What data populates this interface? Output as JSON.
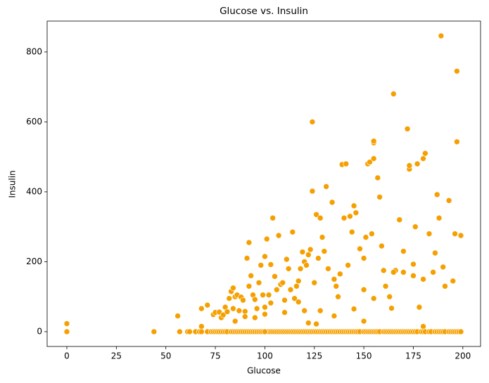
{
  "chart_data": {
    "type": "scatter",
    "title": "Glucose vs. Insulin",
    "x_label": "Glucose",
    "y_label": "Insulin",
    "color": "#f5a000",
    "xlim": [
      -9.95,
      208.95
    ],
    "ylim": [
      -42.3,
      888.3
    ],
    "xticks": [
      0,
      25,
      50,
      75,
      100,
      125,
      150,
      175,
      200
    ],
    "yticks": [
      0,
      200,
      400,
      600,
      800
    ],
    "x": [
      0,
      56,
      68,
      71,
      68,
      74,
      75,
      77,
      78,
      79,
      80,
      81,
      82,
      83,
      84,
      84,
      85,
      86,
      87,
      88,
      89,
      90,
      91,
      92,
      93,
      94,
      95,
      96,
      97,
      98,
      99,
      100,
      100,
      101,
      102,
      103,
      104,
      105,
      106,
      107,
      108,
      109,
      110,
      111,
      112,
      113,
      114,
      115,
      116,
      117,
      118,
      119,
      120,
      121,
      122,
      123,
      124,
      124,
      125,
      126,
      127,
      128,
      129,
      130,
      131,
      132,
      134,
      135,
      136,
      137,
      138,
      139,
      140,
      141,
      142,
      143,
      144,
      145,
      146,
      148,
      150,
      151,
      152,
      153,
      154,
      155,
      155,
      155,
      157,
      158,
      159,
      161,
      163,
      164,
      165,
      166,
      168,
      170,
      172,
      173,
      173,
      176,
      177,
      180,
      181,
      183,
      186,
      187,
      188,
      189,
      191,
      193,
      195,
      196,
      197,
      197,
      199,
      85,
      90,
      95,
      100,
      110,
      120,
      122,
      128,
      135,
      145,
      150,
      160,
      170,
      175,
      180,
      185,
      190,
      178,
      180,
      150,
      92,
      103,
      117,
      126,
      155,
      165,
      175,
      0,
      44,
      57,
      61,
      62,
      65,
      67,
      68,
      71,
      73,
      74,
      75,
      76,
      77,
      78,
      79,
      80,
      81,
      83,
      84,
      85,
      86,
      87,
      88,
      89,
      90,
      91,
      92,
      93,
      94,
      95,
      96,
      97,
      98,
      99,
      100,
      101,
      102,
      103,
      104,
      105,
      106,
      107,
      108,
      109,
      110,
      111,
      112,
      113,
      114,
      115,
      116,
      117,
      118,
      119,
      120,
      121,
      122,
      123,
      124,
      125,
      126,
      127,
      128,
      129,
      130,
      131,
      132,
      133,
      134,
      135,
      136,
      137,
      138,
      139,
      140,
      141,
      142,
      143,
      144,
      145,
      146,
      147,
      148,
      150,
      151,
      152,
      153,
      154,
      155,
      156,
      157,
      158,
      160,
      161,
      162,
      163,
      164,
      165,
      166,
      167,
      168,
      169,
      170,
      171,
      172,
      173,
      174,
      175,
      176,
      177,
      179,
      180,
      181,
      183,
      184,
      186,
      187,
      188,
      189,
      190,
      191,
      193,
      194,
      195,
      196,
      197,
      198,
      199,
      100
    ],
    "values": [
      23,
      45,
      66,
      76,
      15,
      49,
      55,
      56,
      40,
      48,
      70,
      57,
      95,
      115,
      125,
      66,
      100,
      105,
      60,
      99,
      90,
      58,
      210,
      255,
      160,
      105,
      92,
      66,
      140,
      190,
      105,
      215,
      70,
      265,
      105,
      192,
      325,
      158,
      120,
      275,
      135,
      140,
      90,
      207,
      180,
      120,
      285,
      95,
      130,
      145,
      180,
      228,
      200,
      190,
      220,
      235,
      600,
      402,
      140,
      335,
      210,
      325,
      270,
      230,
      415,
      180,
      370,
      150,
      130,
      100,
      165,
      478,
      325,
      480,
      190,
      330,
      285,
      360,
      340,
      237,
      210,
      270,
      480,
      485,
      280,
      540,
      545,
      495,
      440,
      385,
      245,
      130,
      100,
      67,
      680,
      175,
      320,
      230,
      580,
      465,
      475,
      300,
      480,
      495,
      510,
      280,
      225,
      392,
      325,
      846,
      130,
      375,
      145,
      280,
      745,
      543,
      275,
      30,
      43,
      40,
      50,
      55,
      60,
      25,
      60,
      45,
      65,
      120,
      175,
      170,
      160,
      150,
      170,
      185,
      70,
      15,
      30,
      130,
      82,
      85,
      22,
      95,
      170,
      193,
      0,
      0,
      0,
      0,
      0,
      0,
      0,
      0,
      0,
      0,
      0,
      0,
      0,
      0,
      0,
      0,
      0,
      0,
      0,
      0,
      0,
      0,
      0,
      0,
      0,
      0,
      0,
      0,
      0,
      0,
      0,
      0,
      0,
      0,
      0,
      0,
      0,
      0,
      0,
      0,
      0,
      0,
      0,
      0,
      0,
      0,
      0,
      0,
      0,
      0,
      0,
      0,
      0,
      0,
      0,
      0,
      0,
      0,
      0,
      0,
      0,
      0,
      0,
      0,
      0,
      0,
      0,
      0,
      0,
      0,
      0,
      0,
      0,
      0,
      0,
      0,
      0,
      0,
      0,
      0,
      0,
      0,
      0,
      0,
      0,
      0,
      0,
      0,
      0,
      0,
      0,
      0,
      0,
      0,
      0,
      0,
      0,
      0,
      0,
      0,
      0,
      0,
      0,
      0,
      0,
      0,
      0,
      0,
      0,
      0,
      0,
      0,
      0,
      0,
      0,
      0,
      0,
      0,
      0,
      0,
      0,
      0,
      0,
      0,
      0,
      0,
      0,
      0,
      0,
      0
    ]
  }
}
